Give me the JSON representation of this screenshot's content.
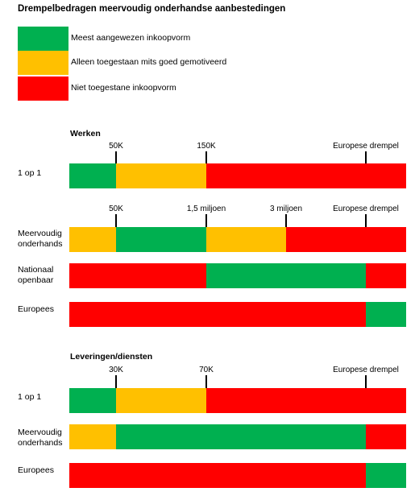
{
  "title": "Drempelbedragen meervoudig onderhandse aanbestedingen",
  "colors": {
    "green": "#00b050",
    "yellow": "#ffc000",
    "red": "#ff0000"
  },
  "legend": [
    {
      "label": "Meest aangewezen inkoopvorm",
      "color": "green"
    },
    {
      "label": "Alleen toegestaan mits goed gemotiveerd",
      "color": "yellow"
    },
    {
      "label": "Niet toegestane inkoopvorm",
      "color": "red"
    }
  ],
  "chart_data": [
    {
      "type": "bar",
      "title": "Werken",
      "tick_groups": [
        {
          "ticks": [
            "50K",
            "150K",
            "Europese drempel"
          ],
          "rows": [
            "1 op 1"
          ]
        },
        {
          "ticks": [
            "50K",
            "1,5 miljoen",
            "3 miljoen",
            "Europese drempel"
          ],
          "rows": [
            "Meervoudig onderhands",
            "Nationaal openbaar",
            "Europees"
          ]
        }
      ],
      "rows": [
        {
          "label": "1 op 1",
          "segments": [
            "green",
            "yellow",
            "red",
            "red"
          ]
        },
        {
          "label": "Meervoudig onderhands",
          "segments": [
            "yellow",
            "green",
            "yellow",
            "red",
            "red"
          ]
        },
        {
          "label": "Nationaal openbaar",
          "segments": [
            "red",
            "red",
            "green",
            "green",
            "red"
          ]
        },
        {
          "label": "Europees",
          "segments": [
            "red",
            "red",
            "red",
            "red",
            "green"
          ]
        }
      ]
    },
    {
      "type": "bar",
      "title": "Leveringen/diensten",
      "tick_groups": [
        {
          "ticks": [
            "30K",
            "70K",
            "Europese drempel"
          ],
          "rows": [
            "1 op 1",
            "Meervoudig onderhands",
            "Europees"
          ]
        }
      ],
      "rows": [
        {
          "label": "1 op 1",
          "segments": [
            "green",
            "yellow",
            "red",
            "red"
          ]
        },
        {
          "label": "Meervoudig onderhands",
          "segments": [
            "yellow",
            "green",
            "green",
            "red"
          ]
        },
        {
          "label": "Europees",
          "segments": [
            "red",
            "red",
            "red",
            "green"
          ]
        }
      ]
    }
  ]
}
